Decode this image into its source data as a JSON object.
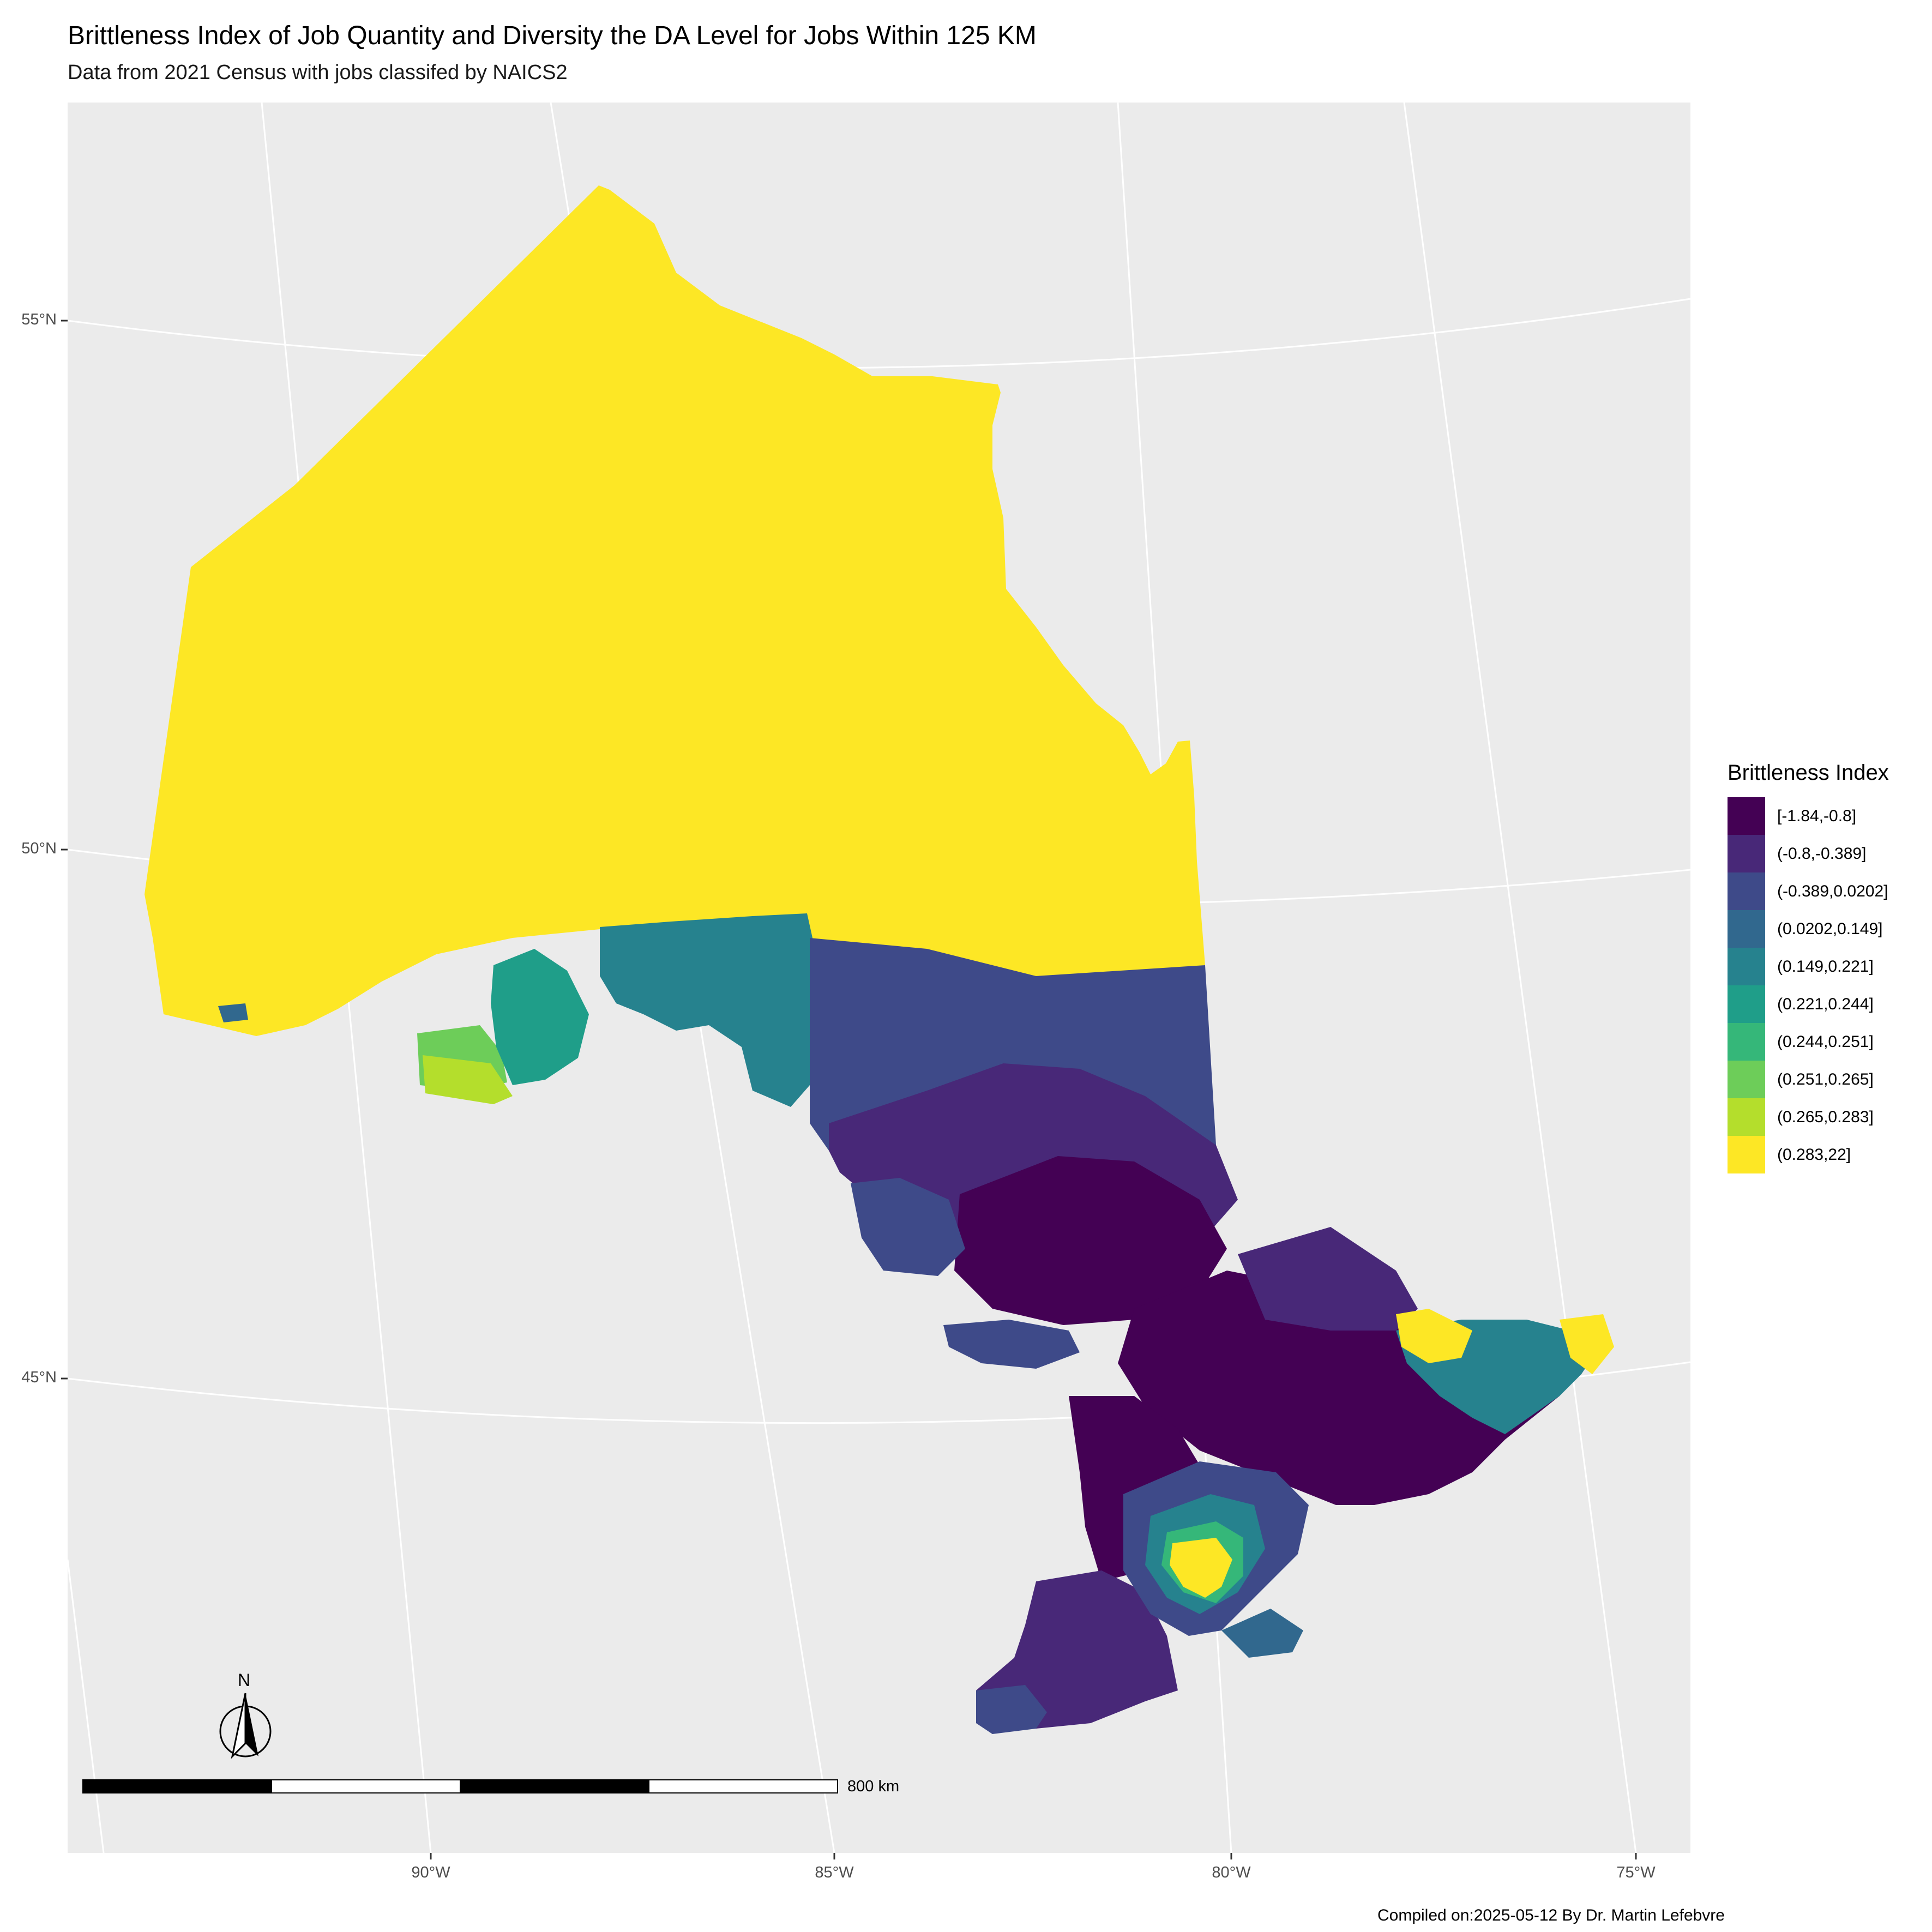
{
  "title": "Brittleness Index of Job Quantity and Diversity the DA Level for Jobs Within 125 KM",
  "subtitle": "Data from 2021 Census with jobs classifed by NAICS2",
  "caption": "Compiled on:2025-05-12 By Dr. Martin Lefebvre",
  "axes": {
    "latitude_labels": [
      "55°N",
      "50°N",
      "45°N"
    ],
    "longitude_labels": [
      "90°W",
      "85°W",
      "80°W",
      "75°W"
    ]
  },
  "north_arrow": {
    "label": "N"
  },
  "scale_bar": {
    "label": "800 km"
  },
  "legend": {
    "title": "Brittleness Index",
    "items": [
      {
        "label": "[-1.84,-0.8]",
        "color": "#440154"
      },
      {
        "label": "(-0.8,-0.389]",
        "color": "#482878"
      },
      {
        "label": "(-0.389,0.0202]",
        "color": "#3E4A89"
      },
      {
        "label": "(0.0202,0.149]",
        "color": "#31688E"
      },
      {
        "label": "(0.149,0.221]",
        "color": "#26828E"
      },
      {
        "label": "(0.221,0.244]",
        "color": "#1F9E89"
      },
      {
        "label": "(0.244,0.251]",
        "color": "#35B779"
      },
      {
        "label": "(0.251,0.265]",
        "color": "#6DCD59"
      },
      {
        "label": "(0.265,0.283]",
        "color": "#B4DE2C"
      },
      {
        "label": "(0.283,22]",
        "color": "#FDE725"
      }
    ]
  },
  "colors": {
    "panel_background": "#EBEBEB",
    "gridline": "#FFFFFF"
  }
}
